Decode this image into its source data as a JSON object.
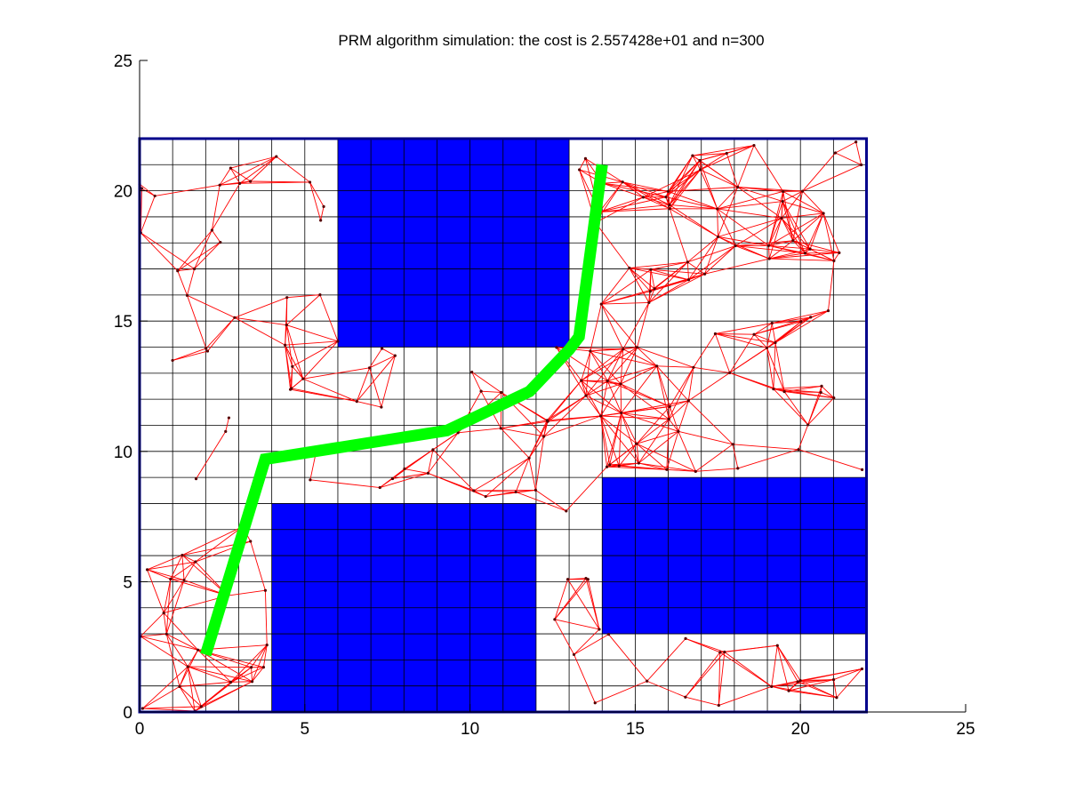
{
  "chart_data": {
    "type": "line",
    "title": "PRM algorithm simulation: the cost is 2.557428e+01 and n=300",
    "xlim": [
      0,
      25
    ],
    "ylim": [
      0,
      25
    ],
    "xticks": [
      0,
      5,
      10,
      15,
      20,
      25
    ],
    "yticks": [
      0,
      5,
      10,
      15,
      20,
      25
    ],
    "grid": {
      "x": [
        0,
        22
      ],
      "y": [
        0,
        22
      ],
      "step": 1
    },
    "workspace": {
      "x": [
        0,
        22
      ],
      "y": [
        0,
        22
      ]
    },
    "obstacles": [
      {
        "x": [
          6,
          13
        ],
        "y": [
          14,
          22
        ]
      },
      {
        "x": [
          4,
          12
        ],
        "y": [
          0,
          8
        ]
      },
      {
        "x": [
          14,
          22
        ],
        "y": [
          3,
          9
        ]
      }
    ],
    "roadmap_nodes_count": 300,
    "path": {
      "x": [
        2.0,
        3.8,
        9.3,
        11.8,
        13.0,
        13.3,
        14.0
      ],
      "y": [
        2.2,
        9.7,
        10.8,
        12.3,
        13.9,
        14.4,
        21.0
      ]
    },
    "colors": {
      "obstacle": "#0000ff",
      "roadmap": "#ff0000",
      "node": "#550000",
      "path": "#00ff00",
      "grid": "#000000",
      "border": "#00008b"
    }
  }
}
